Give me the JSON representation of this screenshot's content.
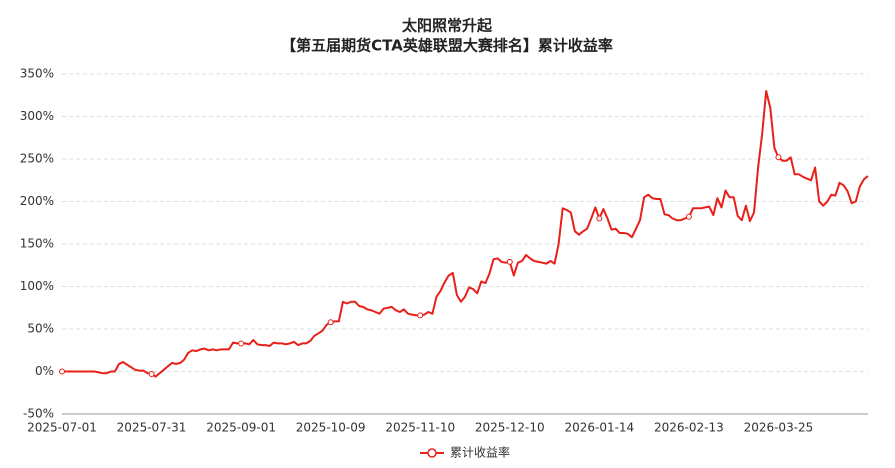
{
  "chart_data": {
    "type": "line",
    "title": "太阳照常升起",
    "subtitle": "【第五届期货CTA英雄联盟大赛排名】累计收益率",
    "categories": [
      "2025-07-01",
      null,
      null,
      null,
      null,
      null,
      null,
      null,
      null,
      null,
      null,
      null,
      null,
      null,
      null,
      null,
      null,
      null,
      null,
      null,
      null,
      null,
      "2025-07-31",
      null,
      null,
      null,
      null,
      null,
      null,
      null,
      null,
      null,
      null,
      null,
      null,
      null,
      null,
      null,
      null,
      null,
      null,
      null,
      null,
      null,
      "2025-09-01",
      null,
      null,
      null,
      null,
      null,
      null,
      null,
      null,
      null,
      null,
      null,
      null,
      null,
      null,
      null,
      null,
      null,
      null,
      null,
      null,
      null,
      "2025-10-09",
      null,
      null,
      null,
      null,
      null,
      null,
      null,
      null,
      null,
      null,
      null,
      null,
      null,
      null,
      null,
      null,
      null,
      null,
      null,
      null,
      null,
      "2025-11-10",
      null,
      null,
      null,
      null,
      null,
      null,
      null,
      null,
      null,
      null,
      null,
      null,
      null,
      null,
      null,
      null,
      null,
      null,
      null,
      null,
      null,
      "2025-12-10",
      null,
      null,
      null,
      null,
      null,
      null,
      null,
      null,
      null,
      null,
      null,
      null,
      null,
      null,
      null,
      null,
      null,
      null,
      null,
      null,
      null,
      "2026-01-14",
      null,
      null,
      null,
      null,
      null,
      null,
      null,
      null,
      null,
      null,
      null,
      null,
      null,
      null,
      null,
      null,
      null,
      null,
      null,
      null,
      null,
      "2026-02-13",
      null,
      null,
      null,
      null,
      null,
      null,
      null,
      null,
      null,
      null,
      null,
      null,
      null,
      null,
      null,
      null,
      null,
      null,
      null,
      null,
      null,
      "2026-03-25",
      null,
      null,
      null,
      null,
      null,
      null,
      null,
      null,
      null,
      null,
      null,
      null,
      null,
      null,
      null,
      null,
      null,
      null,
      null,
      null,
      null,
      null
    ],
    "series": [
      {
        "name": "累计收益率",
        "color": "#e8201a",
        "values": [
          0,
          0,
          0,
          0,
          0,
          0,
          0,
          0,
          0,
          -1,
          -2,
          -2,
          0,
          0,
          9,
          11,
          8,
          5,
          2,
          1,
          1,
          -2,
          -3,
          -6,
          -2,
          2,
          6,
          10,
          9,
          10,
          14,
          22,
          25,
          24,
          26,
          27,
          25,
          26,
          25,
          26,
          26,
          26,
          34,
          33,
          33,
          33,
          32,
          37,
          32,
          31,
          31,
          30,
          34,
          33,
          33,
          32,
          33,
          35,
          31,
          33,
          33,
          36,
          42,
          45,
          48,
          55,
          58,
          59,
          59,
          82,
          80,
          82,
          82,
          77,
          76,
          73,
          72,
          70,
          68,
          74,
          75,
          76,
          72,
          70,
          73,
          68,
          67,
          66,
          66,
          67,
          70,
          68,
          88,
          95,
          105,
          113,
          116,
          90,
          82,
          88,
          99,
          97,
          92,
          106,
          104,
          115,
          132,
          133,
          129,
          128,
          129,
          113,
          128,
          130,
          137,
          133,
          130,
          129,
          128,
          127,
          130,
          127,
          150,
          192,
          190,
          187,
          165,
          161,
          165,
          168,
          180,
          193,
          180,
          191,
          180,
          167,
          168,
          163,
          163,
          162,
          158,
          168,
          178,
          205,
          208,
          204,
          203,
          203,
          185,
          184,
          180,
          178,
          178,
          180,
          182,
          192,
          192,
          192,
          193,
          194,
          184,
          204,
          193,
          213,
          205,
          205,
          183,
          178,
          195,
          177,
          187,
          240,
          280,
          330,
          310,
          263,
          252,
          248,
          248,
          252,
          232,
          232,
          229,
          227,
          225,
          240,
          200,
          195,
          200,
          208,
          207,
          222,
          219,
          212,
          198,
          200,
          218,
          226,
          230
        ]
      }
    ],
    "ylim": [
      -50,
      350
    ],
    "yticks": [
      {
        "value": -50,
        "label": "-50%"
      },
      {
        "value": 0,
        "label": "0%"
      },
      {
        "value": 50,
        "label": "50%"
      },
      {
        "value": 100,
        "label": "100%"
      },
      {
        "value": 150,
        "label": "150%"
      },
      {
        "value": 200,
        "label": "200%"
      },
      {
        "value": 250,
        "label": "250%"
      },
      {
        "value": 300,
        "label": "300%"
      },
      {
        "value": 350,
        "label": "350%"
      }
    ],
    "grid": true,
    "legend": "bottom"
  }
}
